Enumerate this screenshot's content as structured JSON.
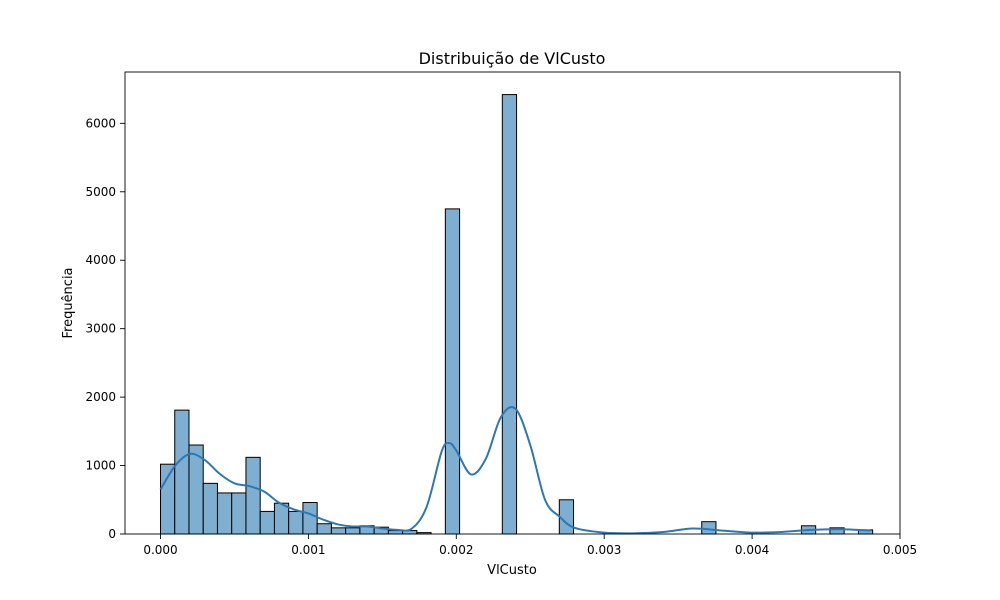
{
  "chart_data": {
    "type": "bar",
    "title": "Distribuição de VlCusto",
    "xlabel": "VlCusto",
    "ylabel": "Frequência",
    "xlim": [
      -0.00024,
      0.005
    ],
    "ylim": [
      0,
      6750
    ],
    "xticks": [
      0.0,
      0.001,
      0.002,
      0.003,
      0.004,
      0.005
    ],
    "xtick_labels": [
      "0.000",
      "0.001",
      "0.002",
      "0.003",
      "0.004",
      "0.005"
    ],
    "yticks": [
      0,
      1000,
      2000,
      3000,
      4000,
      5000,
      6000
    ],
    "ytick_labels": [
      "0",
      "1000",
      "2000",
      "3000",
      "4000",
      "5000",
      "6000"
    ],
    "grid": false,
    "bin_width": 9.63e-05,
    "bins": [
      {
        "x": 0.0,
        "count": 1020
      },
      {
        "x": 9.63e-05,
        "count": 1810
      },
      {
        "x": 0.0001926,
        "count": 1300
      },
      {
        "x": 0.0002889,
        "count": 740
      },
      {
        "x": 0.0003852,
        "count": 600
      },
      {
        "x": 0.0004815,
        "count": 600
      },
      {
        "x": 0.0005778,
        "count": 1120
      },
      {
        "x": 0.0006741,
        "count": 330
      },
      {
        "x": 0.0007704,
        "count": 450
      },
      {
        "x": 0.0008667,
        "count": 330
      },
      {
        "x": 0.000963,
        "count": 460
      },
      {
        "x": 0.0010593,
        "count": 150
      },
      {
        "x": 0.0011556,
        "count": 90
      },
      {
        "x": 0.0012519,
        "count": 90
      },
      {
        "x": 0.0013482,
        "count": 120
      },
      {
        "x": 0.0014445,
        "count": 100
      },
      {
        "x": 0.0015408,
        "count": 50
      },
      {
        "x": 0.0016371,
        "count": 50
      },
      {
        "x": 0.0017334,
        "count": 20
      },
      {
        "x": 0.0018297,
        "count": 0
      },
      {
        "x": 0.001926,
        "count": 4750
      },
      {
        "x": 0.0020223,
        "count": 0
      },
      {
        "x": 0.0021186,
        "count": 0
      },
      {
        "x": 0.0022149,
        "count": 0
      },
      {
        "x": 0.0023112,
        "count": 6420
      },
      {
        "x": 0.0024075,
        "count": 0
      },
      {
        "x": 0.0025038,
        "count": 0
      },
      {
        "x": 0.0026001,
        "count": 0
      },
      {
        "x": 0.0026964,
        "count": 500
      },
      {
        "x": 0.0036594,
        "count": 180
      },
      {
        "x": 0.0043335,
        "count": 120
      },
      {
        "x": 0.0045261,
        "count": 90
      },
      {
        "x": 0.0047187,
        "count": 60
      }
    ],
    "kde": {
      "x": [
        0.0,
        0.0001,
        0.0002,
        0.0003,
        0.0004,
        0.0005,
        0.0006,
        0.0007,
        0.0008,
        0.0009,
        0.001,
        0.0011,
        0.0012,
        0.0013,
        0.0014,
        0.0015,
        0.0016,
        0.0017,
        0.0018,
        0.0019,
        0.00195,
        0.002,
        0.0021,
        0.0022,
        0.0023,
        0.0024,
        0.0025,
        0.0026,
        0.0027,
        0.0028,
        0.003,
        0.0032,
        0.0034,
        0.0036,
        0.0038,
        0.004,
        0.0042,
        0.0044,
        0.0046,
        0.0048
      ],
      "y": [
        650,
        1000,
        1170,
        1080,
        880,
        740,
        700,
        620,
        460,
        360,
        300,
        210,
        140,
        110,
        110,
        80,
        60,
        80,
        400,
        1200,
        1330,
        1220,
        870,
        1100,
        1700,
        1830,
        1300,
        500,
        250,
        90,
        20,
        10,
        30,
        80,
        50,
        20,
        30,
        60,
        70,
        50
      ]
    }
  }
}
